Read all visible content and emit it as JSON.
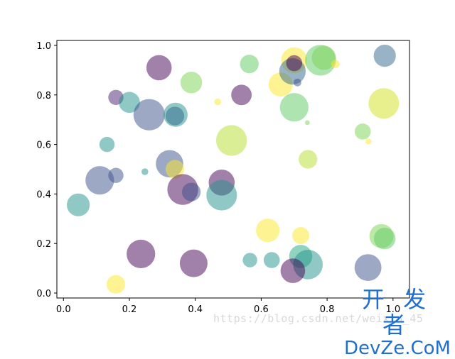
{
  "chart_data": {
    "type": "scatter",
    "title": "",
    "xlabel": "",
    "ylabel": "",
    "xlim": [
      -0.02,
      1.05
    ],
    "ylim": [
      -0.02,
      1.02
    ],
    "xticks": [
      "0.0",
      "0.2",
      "0.4",
      "0.6",
      "0.8",
      "1.0"
    ],
    "yticks": [
      "0.0",
      "0.2",
      "0.4",
      "0.6",
      "0.8",
      "1.0"
    ],
    "grid": false,
    "legend": "none",
    "colormap": "viridis",
    "alpha": 0.5,
    "points": [
      {
        "x": 0.29,
        "y": 0.91,
        "size": 0.55,
        "color": "#440154"
      },
      {
        "x": 0.159,
        "y": 0.79,
        "size": 0.2,
        "color": "#481f70"
      },
      {
        "x": 0.2,
        "y": 0.77,
        "size": 0.38,
        "color": "#21918c"
      },
      {
        "x": 0.26,
        "y": 0.72,
        "size": 0.85,
        "color": "#3b528b"
      },
      {
        "x": 0.34,
        "y": 0.72,
        "size": 0.5,
        "color": "#21918c"
      },
      {
        "x": 0.338,
        "y": 0.715,
        "size": 0.3,
        "color": "#31688e"
      },
      {
        "x": 0.388,
        "y": 0.85,
        "size": 0.4,
        "color": "#7ad151"
      },
      {
        "x": 0.54,
        "y": 0.8,
        "size": 0.36,
        "color": "#440154"
      },
      {
        "x": 0.564,
        "y": 0.925,
        "size": 0.3,
        "color": "#5ec962"
      },
      {
        "x": 0.468,
        "y": 0.772,
        "size": 0.04,
        "color": "#fde725"
      },
      {
        "x": 0.659,
        "y": 0.842,
        "size": 0.5,
        "color": "#fde725"
      },
      {
        "x": 0.7,
        "y": 0.94,
        "size": 0.58,
        "color": "#fde725"
      },
      {
        "x": 0.695,
        "y": 0.895,
        "size": 0.6,
        "color": "#31688e"
      },
      {
        "x": 0.7,
        "y": 0.928,
        "size": 0.22,
        "color": "#440154"
      },
      {
        "x": 0.71,
        "y": 0.85,
        "size": 0.05,
        "color": "#3b528b"
      },
      {
        "x": 0.7,
        "y": 0.75,
        "size": 0.7,
        "color": "#5ec962"
      },
      {
        "x": 0.78,
        "y": 0.94,
        "size": 0.82,
        "color": "#5ec962"
      },
      {
        "x": 0.79,
        "y": 0.95,
        "size": 0.5,
        "color": "#7ad151"
      },
      {
        "x": 0.825,
        "y": 0.925,
        "size": 0.06,
        "color": "#fde725"
      },
      {
        "x": 0.975,
        "y": 0.958,
        "size": 0.42,
        "color": "#31688e"
      },
      {
        "x": 0.972,
        "y": 0.766,
        "size": 0.8,
        "color": "#d2e21b"
      },
      {
        "x": 0.908,
        "y": 0.652,
        "size": 0.22,
        "color": "#7ad151"
      },
      {
        "x": 0.925,
        "y": 0.612,
        "size": 0.03,
        "color": "#fde725"
      },
      {
        "x": 0.51,
        "y": 0.616,
        "size": 0.82,
        "color": "#b5de2b"
      },
      {
        "x": 0.742,
        "y": 0.54,
        "size": 0.3,
        "color": "#b5de2b"
      },
      {
        "x": 0.74,
        "y": 0.688,
        "size": 0.02,
        "color": "#7ad151"
      },
      {
        "x": 0.132,
        "y": 0.6,
        "size": 0.2,
        "color": "#21918c"
      },
      {
        "x": 0.11,
        "y": 0.455,
        "size": 0.7,
        "color": "#3b528b"
      },
      {
        "x": 0.159,
        "y": 0.475,
        "size": 0.2,
        "color": "#3b528b"
      },
      {
        "x": 0.247,
        "y": 0.49,
        "size": 0.04,
        "color": "#21918c"
      },
      {
        "x": 0.322,
        "y": 0.522,
        "size": 0.65,
        "color": "#3b528b"
      },
      {
        "x": 0.338,
        "y": 0.5,
        "size": 0.3,
        "color": "#fde725"
      },
      {
        "x": 0.362,
        "y": 0.418,
        "size": 0.82,
        "color": "#440154"
      },
      {
        "x": 0.388,
        "y": 0.408,
        "size": 0.3,
        "color": "#3b528b"
      },
      {
        "x": 0.48,
        "y": 0.446,
        "size": 0.58,
        "color": "#440154"
      },
      {
        "x": 0.48,
        "y": 0.395,
        "size": 0.8,
        "color": "#21918c"
      },
      {
        "x": 0.045,
        "y": 0.356,
        "size": 0.45,
        "color": "#21918c"
      },
      {
        "x": 0.62,
        "y": 0.253,
        "size": 0.48,
        "color": "#fde725"
      },
      {
        "x": 0.72,
        "y": 0.232,
        "size": 0.25,
        "color": "#fde725"
      },
      {
        "x": 0.965,
        "y": 0.23,
        "size": 0.5,
        "color": "#7ad151"
      },
      {
        "x": 0.975,
        "y": 0.22,
        "size": 0.4,
        "color": "#5ec962"
      },
      {
        "x": 0.235,
        "y": 0.158,
        "size": 0.7,
        "color": "#440154"
      },
      {
        "x": 0.395,
        "y": 0.12,
        "size": 0.66,
        "color": "#440154"
      },
      {
        "x": 0.566,
        "y": 0.133,
        "size": 0.18,
        "color": "#21918c"
      },
      {
        "x": 0.632,
        "y": 0.133,
        "size": 0.22,
        "color": "#21918c"
      },
      {
        "x": 0.72,
        "y": 0.148,
        "size": 0.46,
        "color": "#22a884"
      },
      {
        "x": 0.742,
        "y": 0.115,
        "size": 0.75,
        "color": "#21918c"
      },
      {
        "x": 0.696,
        "y": 0.09,
        "size": 0.52,
        "color": "#440154"
      },
      {
        "x": 0.924,
        "y": 0.103,
        "size": 0.62,
        "color": "#3b528b"
      },
      {
        "x": 0.159,
        "y": 0.035,
        "size": 0.3,
        "color": "#fde725"
      }
    ]
  },
  "watermark": {
    "url": "https://blog.csdn.net/weixin_45",
    "brand_cn": "开 发 者",
    "brand_en": "DevZe.CoM"
  }
}
